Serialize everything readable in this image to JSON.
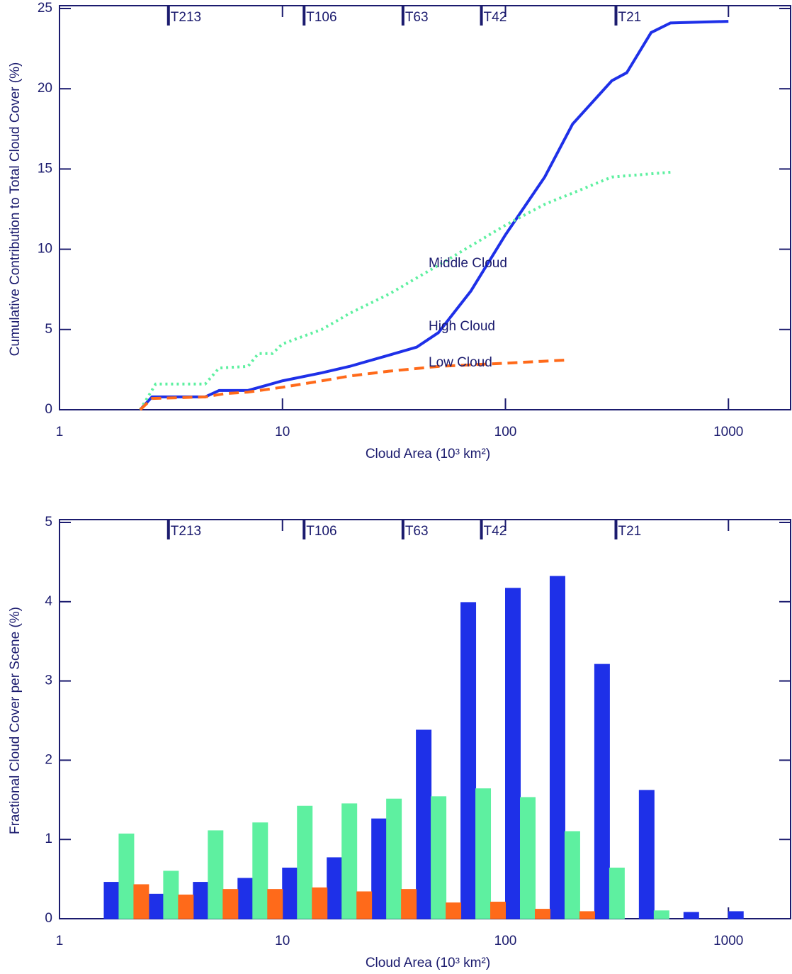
{
  "chart_data": [
    {
      "type": "line",
      "xlabel": "Cloud Area (10³ km²)",
      "ylabel": "Cumulative Contribution to Total Cloud Cover (%)",
      "xlog": true,
      "xlim": [
        1,
        1900
      ],
      "xticks": [
        1,
        10,
        100,
        1000
      ],
      "ylim": [
        0,
        25
      ],
      "yticks": [
        0,
        5,
        10,
        15,
        20,
        25
      ],
      "annotations": [
        {
          "x": 3.08,
          "label": "T213"
        },
        {
          "x": 12.5,
          "label": "T106"
        },
        {
          "x": 34.7,
          "label": "T63"
        },
        {
          "x": 78,
          "label": "T42"
        },
        {
          "x": 313,
          "label": "T21"
        }
      ],
      "series": [
        {
          "name": "High Cloud",
          "color": "#1e30e8",
          "dash": "solid",
          "x": [
            2.3,
            2.6,
            4.5,
            5.2,
            7,
            10,
            15,
            20,
            30,
            40,
            50,
            70,
            100,
            150,
            200,
            300,
            350,
            450,
            550,
            1000
          ],
          "values": [
            0,
            0.8,
            0.8,
            1.2,
            1.2,
            1.8,
            2.3,
            2.7,
            3.4,
            3.9,
            4.8,
            7.4,
            10.9,
            14.5,
            17.8,
            20.5,
            21,
            23.5,
            24.1,
            24.2
          ]
        },
        {
          "name": "Middle Cloud",
          "color": "#5ef0a0",
          "dash": "dotted",
          "x": [
            2.3,
            2.7,
            4.5,
            5.2,
            7,
            7.8,
            9,
            10,
            15,
            20,
            30,
            50,
            100,
            150,
            200,
            300,
            550
          ],
          "values": [
            0,
            1.6,
            1.6,
            2.6,
            2.7,
            3.5,
            3.5,
            4.1,
            5,
            6,
            7.2,
            9,
            11.5,
            12.8,
            13.5,
            14.5,
            14.8
          ]
        },
        {
          "name": "Low Cloud",
          "color": "#ff6a1a",
          "dash": "dashed",
          "x": [
            2.3,
            2.6,
            4.5,
            5.5,
            7,
            10,
            15,
            20,
            30,
            50,
            100,
            190
          ],
          "values": [
            0,
            0.7,
            0.8,
            1,
            1.1,
            1.4,
            1.8,
            2.1,
            2.4,
            2.7,
            2.9,
            3.1
          ]
        }
      ]
    },
    {
      "type": "histogram",
      "xlabel": "Cloud Area (10³ km²)",
      "ylabel": "Fractional Cloud Cover per Scene (%)",
      "xlog": true,
      "xlim": [
        1,
        1900
      ],
      "xticks": [
        1,
        10,
        100,
        1000
      ],
      "ylim": [
        0,
        5
      ],
      "yticks": [
        0,
        1,
        2,
        3,
        4,
        5
      ],
      "annotations": [
        {
          "x": 3.08,
          "label": "T213"
        },
        {
          "x": 12.5,
          "label": "T106"
        },
        {
          "x": 34.7,
          "label": "T63"
        },
        {
          "x": 78,
          "label": "T42"
        },
        {
          "x": 313,
          "label": "T21"
        }
      ],
      "bins": [
        1,
        1.585,
        2.512,
        3.981,
        6.31,
        10,
        15.85,
        25.12,
        39.81,
        63.1,
        100,
        158.5,
        251.2,
        398.1,
        631,
        1000,
        1585
      ],
      "series": [
        {
          "color": "#1e30e8",
          "values": [
            0,
            0.46,
            0.31,
            0.46,
            0.51,
            0.64,
            0.77,
            1.26,
            2.38,
            3.99,
            4.17,
            4.32,
            3.21,
            1.62,
            0.08,
            0.09
          ]
        },
        {
          "color": "#5ef0a0",
          "values": [
            0,
            1.07,
            0.6,
            1.11,
            1.21,
            1.42,
            1.45,
            1.51,
            1.54,
            1.64,
            1.53,
            1.1,
            0.64,
            0.1,
            0,
            0
          ]
        },
        {
          "color": "#ff6a1a",
          "values": [
            0,
            0.43,
            0.3,
            0.37,
            0.37,
            0.39,
            0.34,
            0.37,
            0.2,
            0.21,
            0.12,
            0.09,
            0,
            0,
            0,
            0
          ]
        }
      ]
    }
  ]
}
